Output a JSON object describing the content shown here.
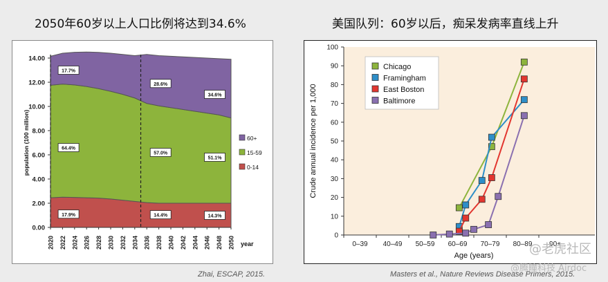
{
  "titles": {
    "left": "2050年60岁以上人口比例将达到34.6%",
    "right": "美国队列：60岁以后，痴呆发病率直线上升"
  },
  "captions": {
    "left": "Zhai, ESCAP, 2015.",
    "right": "Masters et al., Nature Reviews Disease Primers, 2015."
  },
  "watermarks": {
    "top": "@老虎社区",
    "bottom": "@腾瞳科技 Airdoc"
  },
  "colors": {
    "aged_60_plus": "#8064a2",
    "aged_15_59": "#8db43c",
    "aged_0_14": "#c0504d",
    "chicago": "#8db43c",
    "framingham": "#2e8ec8",
    "east_boston": "#e2362f",
    "baltimore": "#8a70b0",
    "right_bg": "#fbeedd"
  },
  "chart_data": [
    {
      "type": "area",
      "stacked": true,
      "ylabel": "population (100 million)",
      "xlabel": "year",
      "ylim": [
        0,
        14
      ],
      "yticks": [
        "0.00",
        "2.00",
        "4.00",
        "6.00",
        "8.00",
        "10.00",
        "12.00",
        "14.00"
      ],
      "x": [
        2020,
        2022,
        2024,
        2026,
        2028,
        2030,
        2032,
        2034,
        2036,
        2038,
        2040,
        2042,
        2044,
        2046,
        2048,
        2050
      ],
      "series": [
        {
          "name": "0-14",
          "values": [
            2.45,
            2.5,
            2.48,
            2.45,
            2.42,
            2.35,
            2.25,
            2.15,
            2.05,
            2.0,
            2.0,
            2.0,
            2.0,
            2.0,
            2.0,
            2.0
          ]
        },
        {
          "name": "15-59",
          "values": [
            9.3,
            9.35,
            9.3,
            9.2,
            9.05,
            8.9,
            8.75,
            8.55,
            8.2,
            8.05,
            7.9,
            7.75,
            7.6,
            7.45,
            7.3,
            7.05
          ]
        },
        {
          "name": "60+",
          "values": [
            2.4,
            2.55,
            2.7,
            2.85,
            3.0,
            3.15,
            3.3,
            3.5,
            4.05,
            4.15,
            4.25,
            4.35,
            4.45,
            4.55,
            4.65,
            4.85
          ]
        }
      ],
      "legend_order": [
        "60+",
        "15-59",
        "0-14"
      ],
      "legend_position": "right",
      "markers": [
        2020,
        2035
      ],
      "annotations": [
        {
          "text": "17.7%",
          "x": 2023,
          "y": 13.0
        },
        {
          "text": "64.4%",
          "x": 2023,
          "y": 6.6
        },
        {
          "text": "17.9%",
          "x": 2023,
          "y": 1.1
        },
        {
          "text": "28.6%",
          "x": 2038.3,
          "y": 11.9
        },
        {
          "text": "57.0%",
          "x": 2038.3,
          "y": 6.2
        },
        {
          "text": "14.4%",
          "x": 2038.3,
          "y": 1.05
        },
        {
          "text": "34.6%",
          "x": 2047.3,
          "y": 11.0
        },
        {
          "text": "51.1%",
          "x": 2047.3,
          "y": 5.8
        },
        {
          "text": "14.3%",
          "x": 2047.3,
          "y": 1.0
        }
      ]
    },
    {
      "type": "line",
      "ylabel": "Crude annual incidence per 1,000",
      "xlabel": "Age (years)",
      "ylim": [
        0,
        100
      ],
      "yticks": [
        "0",
        "10",
        "20",
        "30",
        "40",
        "50",
        "60",
        "70",
        "80",
        "90",
        "100"
      ],
      "categories": [
        "0–39",
        "40–49",
        "50–59",
        "60–69",
        "70–79",
        "80–89",
        "90+"
      ],
      "legend_position": "top-left",
      "series": [
        {
          "name": "Chicago",
          "points": [
            [
              65.5,
              14.5
            ],
            [
              75.5,
              47
            ],
            [
              85.5,
              92
            ]
          ]
        },
        {
          "name": "Framingham",
          "points": [
            [
              65.5,
              4.5
            ],
            [
              67.5,
              16
            ],
            [
              72.5,
              29
            ],
            [
              75.5,
              52
            ],
            [
              85.5,
              72
            ]
          ]
        },
        {
          "name": "East Boston",
          "points": [
            [
              65.5,
              2
            ],
            [
              67.5,
              9
            ],
            [
              72.5,
              19
            ],
            [
              75.5,
              30.5
            ],
            [
              85.5,
              83
            ]
          ]
        },
        {
          "name": "Baltimore",
          "points": [
            [
              57.5,
              0
            ],
            [
              62.5,
              0.5
            ],
            [
              67.5,
              1
            ],
            [
              70,
              3
            ],
            [
              74.5,
              5.5
            ],
            [
              77.5,
              20.5
            ],
            [
              85.5,
              63.5
            ]
          ]
        }
      ]
    }
  ]
}
